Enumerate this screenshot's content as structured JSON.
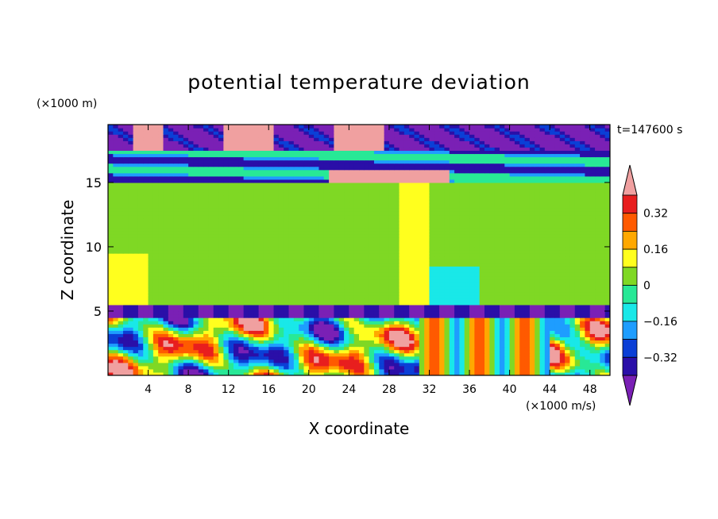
{
  "chart_data": {
    "type": "heatmap",
    "title": "potential temperature deviation",
    "xlabel": "X coordinate",
    "ylabel": "Z coordinate",
    "x_units": "(×1000 m/s)",
    "y_units": "(×1000 m)",
    "time_label": "t=147600 s",
    "xlim": [
      0,
      50
    ],
    "ylim": [
      0,
      19.5
    ],
    "x_ticks": [
      {
        "value": 4,
        "label": "4"
      },
      {
        "value": 8,
        "label": "8"
      },
      {
        "value": 12,
        "label": "12"
      },
      {
        "value": 16,
        "label": "16"
      },
      {
        "value": 20,
        "label": "20"
      },
      {
        "value": 24,
        "label": "24"
      },
      {
        "value": 28,
        "label": "28"
      },
      {
        "value": 32,
        "label": "32"
      },
      {
        "value": 36,
        "label": "36"
      },
      {
        "value": 40,
        "label": "40"
      },
      {
        "value": 44,
        "label": "44"
      },
      {
        "value": 48,
        "label": "48"
      }
    ],
    "y_ticks": [
      {
        "value": 5,
        "label": "5"
      },
      {
        "value": 10,
        "label": "10"
      },
      {
        "value": 15,
        "label": "15"
      }
    ],
    "colorbar": {
      "levels": [
        -0.4,
        -0.32,
        -0.24,
        -0.16,
        -0.08,
        0,
        0.08,
        0.16,
        0.24,
        0.32,
        0.4
      ],
      "colors": [
        "#7a20b5",
        "#2a0fa8",
        "#0b3fd6",
        "#1e9dff",
        "#19e8e8",
        "#28e896",
        "#7fd824",
        "#ffff1e",
        "#ffa800",
        "#ff5a00",
        "#e81e1e",
        "#f0a0a0"
      ],
      "tick_labels": [
        {
          "value": -0.32,
          "label": "−0.32"
        },
        {
          "value": -0.16,
          "label": "−0.16"
        },
        {
          "value": 0,
          "label": "0"
        },
        {
          "value": 0.16,
          "label": "0.16"
        },
        {
          "value": 0.32,
          "label": "0.32"
        }
      ],
      "extend": "both"
    },
    "field_description_regions": [
      {
        "z_range": [
          17.5,
          19.5
        ],
        "value": -0.45
      },
      {
        "z_range": [
          15,
          17.5
        ],
        "value": -0.3
      },
      {
        "z_range": [
          5.5,
          15
        ],
        "value": 0.02
      },
      {
        "z_range": [
          0,
          5.5
        ],
        "value": "mixed"
      }
    ]
  }
}
